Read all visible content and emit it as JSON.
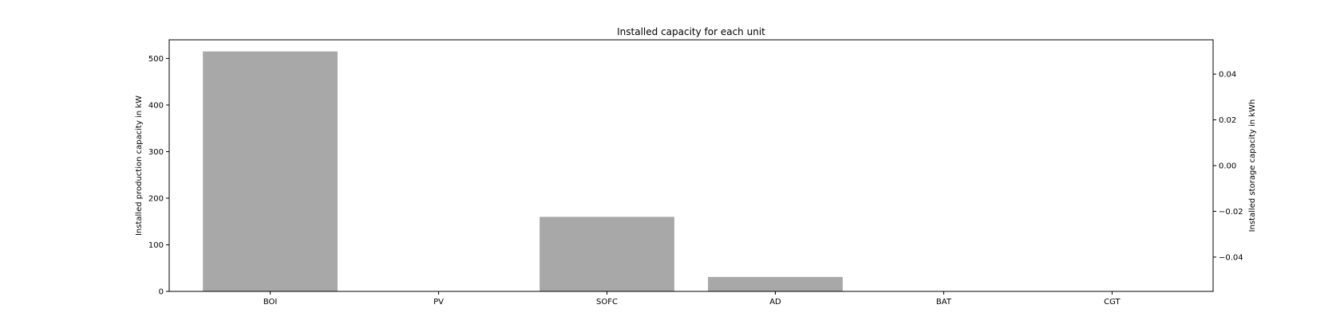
{
  "chart_data": {
    "type": "bar",
    "title": "Installed capacity for each unit",
    "categories": [
      "BOI",
      "PV",
      "SOFC",
      "AD",
      "BAT",
      "CGT"
    ],
    "series": [
      {
        "name": "Installed production capacity",
        "axis": "left",
        "values": [
          515,
          0,
          160,
          31,
          0,
          0
        ],
        "color": "#a8a8a8"
      }
    ],
    "ylabel_left": "Installed production capacity in kW",
    "ylabel_right": "Installed storage capacity in kWh",
    "ylim_left": [
      0,
      540
    ],
    "yticks_left": [
      0,
      100,
      200,
      300,
      400,
      500
    ],
    "ytick_labels_left": [
      "0",
      "100",
      "200",
      "300",
      "400",
      "500"
    ],
    "ylim_right": [
      -0.055,
      0.055
    ],
    "yticks_right": [
      -0.04,
      -0.02,
      0.0,
      0.02,
      0.04
    ],
    "ytick_labels_right": [
      "−0.04",
      "−0.02",
      "0.00",
      "0.02",
      "0.04"
    ],
    "grid": false,
    "legend": "none"
  }
}
